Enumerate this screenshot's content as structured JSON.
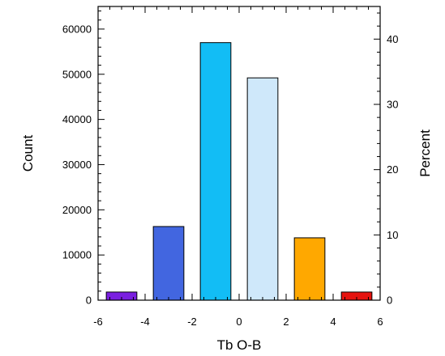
{
  "chart_data": {
    "type": "bar",
    "xlabel": "Tb O-B",
    "ylabel": "Count",
    "y2label": "Percent",
    "x_ticks": [
      "-6",
      "-4",
      "-2",
      "0",
      "2",
      "4",
      "6"
    ],
    "y_ticks": [
      "0",
      "10000",
      "20000",
      "30000",
      "40000",
      "50000",
      "60000"
    ],
    "y2_ticks": [
      "0",
      "10",
      "20",
      "30",
      "40"
    ],
    "xlim": [
      -6,
      6
    ],
    "ylim": [
      0,
      65000
    ],
    "y2lim": [
      0,
      45
    ],
    "bars": [
      {
        "x": -5,
        "value": 1800,
        "color": "#7a1fe0"
      },
      {
        "x": -3,
        "value": 16300,
        "color": "#4266e0"
      },
      {
        "x": -1,
        "value": 57000,
        "color": "#12bdf5"
      },
      {
        "x": 1,
        "value": 49200,
        "color": "#cfe8fa"
      },
      {
        "x": 3,
        "value": 13800,
        "color": "#ffa800"
      },
      {
        "x": 5,
        "value": 1800,
        "color": "#e6130f"
      }
    ],
    "bar_width": 1.3,
    "grid": false,
    "legend": "none"
  }
}
